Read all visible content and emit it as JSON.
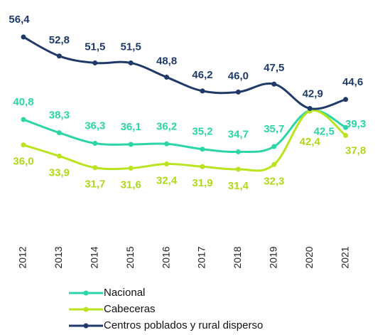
{
  "chart_data": {
    "type": "line",
    "categories": [
      "2012",
      "2013",
      "2014",
      "2015",
      "2016",
      "2017",
      "2018",
      "2019",
      "2020",
      "2021"
    ],
    "series": [
      {
        "name": "Nacional",
        "color": "#2cd5a5",
        "values": [
          40.8,
          38.3,
          36.3,
          36.1,
          36.2,
          35.2,
          34.7,
          35.7,
          42.5,
          39.3
        ],
        "value_labels": [
          "40,8",
          "38,3",
          "36,3",
          "36,1",
          "36,2",
          "35,2",
          "34,7",
          "35,7",
          "42,5",
          "39,3"
        ]
      },
      {
        "name": "Cabeceras",
        "color": "#b9e41f",
        "values": [
          36.0,
          33.9,
          31.7,
          31.6,
          32.4,
          31.9,
          31.4,
          32.3,
          42.4,
          37.8
        ],
        "value_labels": [
          "36,0",
          "33,9",
          "31,7",
          "31,6",
          "32,4",
          "31,9",
          "31,4",
          "32,3",
          "42,4",
          "37,8"
        ]
      },
      {
        "name": "Centros poblados y rural disperso",
        "color": "#1f3a68",
        "values": [
          56.4,
          52.8,
          51.5,
          51.5,
          48.8,
          46.2,
          46.0,
          47.5,
          42.9,
          44.6
        ],
        "value_labels": [
          "56,4",
          "52,8",
          "51,5",
          "51,5",
          "48,8",
          "46,2",
          "46,0",
          "47,5",
          "42,9",
          "44,6"
        ]
      }
    ]
  }
}
